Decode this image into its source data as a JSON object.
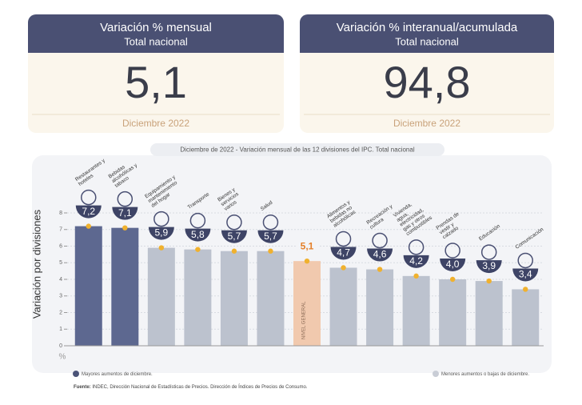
{
  "cards": [
    {
      "title": "Variación % mensual",
      "subtitle": "Total nacional",
      "value": "5,1",
      "period": "Diciembre 2022"
    },
    {
      "title": "Variación % interanual/acumulada",
      "subtitle": "Total nacional",
      "value": "94,8",
      "period": "Diciembre 2022"
    }
  ],
  "chart_data": {
    "type": "bar",
    "title": "Diciembre de 2022",
    "subtitle": " - Variación mensual de las 12 divisiones del IPC. Total nacional",
    "y_label": "Variación por divisiones",
    "unit": "%",
    "categories": [
      "Restaurantes y hoteles",
      "Bebidas alcohólicas y tabaco",
      "Equipamiento y mantenimiento del hogar",
      "Transporte",
      "Bienes y servicios varios",
      "Salud",
      "NIVEL GENERAL",
      "Alimentos y bebidas no alcohólicas",
      "Recreación y cultura",
      "Vivienda, agua, electricidad, gas y otros combustibles",
      "Prendas de vestir y calzado",
      "Educación",
      "Comunicación"
    ],
    "label_inside": [
      false,
      false,
      false,
      false,
      false,
      false,
      true,
      false,
      false,
      false,
      false,
      false,
      false
    ],
    "values": [
      7.2,
      7.1,
      5.9,
      5.8,
      5.7,
      5.7,
      5.1,
      4.7,
      4.6,
      4.2,
      4.0,
      3.9,
      3.4
    ],
    "value_labels": [
      "7,2",
      "7,1",
      "5,9",
      "5,8",
      "5,7",
      "5,7",
      "5,1",
      "4,7",
      "4,6",
      "4,2",
      "4,0",
      "3,9",
      "3,4"
    ],
    "colors": [
      "#5d6890",
      "#5d6890",
      "#bcc2ce",
      "#bcc2ce",
      "#bcc2ce",
      "#bcc2ce",
      "#f1c9ae",
      "#bcc2ce",
      "#bcc2ce",
      "#bcc2ce",
      "#bcc2ce",
      "#bcc2ce",
      "#bcc2ce"
    ],
    "badge_colors": [
      "#3e4466",
      "#3e4466",
      "#3e4466",
      "#3e4466",
      "#3e4466",
      "#3e4466",
      "#f3f4f7",
      "#3e4466",
      "#3e4466",
      "#3e4466",
      "#3e4466",
      "#3e4466",
      "#3e4466"
    ],
    "value_label_colors": [
      "#ffffff",
      "#ffffff",
      "#ffffff",
      "#ffffff",
      "#ffffff",
      "#ffffff",
      "#e4802a",
      "#ffffff",
      "#ffffff",
      "#ffffff",
      "#ffffff",
      "#ffffff",
      "#ffffff"
    ],
    "ylim": [
      0,
      8
    ],
    "yticks": [
      0,
      1,
      2,
      3,
      4,
      5,
      6,
      7,
      8
    ],
    "grid": true,
    "legend": [
      {
        "label": "Mayores aumentos de diciembre.",
        "color": "#4b5478"
      },
      {
        "label": "Menores aumentos o bajas de diciembre.",
        "color": "#c9cdd6"
      }
    ],
    "source_bold": "Fuente:",
    "source": " INDEC, Dirección Nacional de Estadísticas de Precios. Dirección de Índices de Precios de Consumo."
  }
}
